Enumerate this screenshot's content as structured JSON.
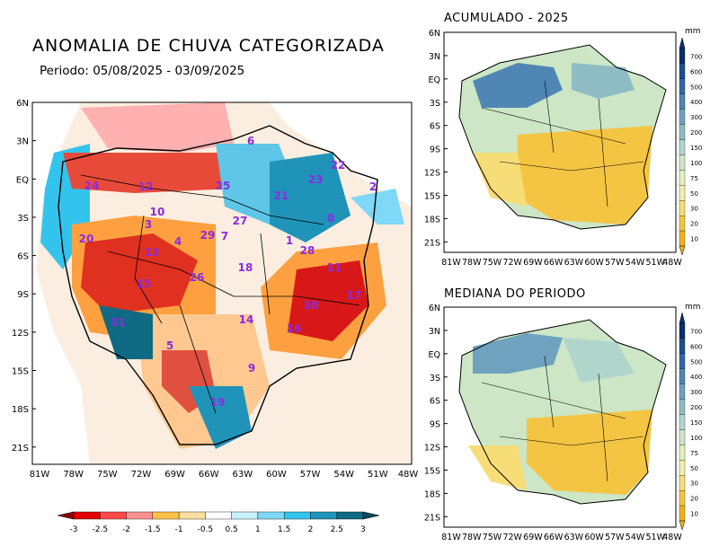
{
  "main_map": {
    "title": "ANOMALIA DE CHUVA CATEGORIZADA",
    "subtitle": "Periodo: 05/08/2025 - 03/09/2025",
    "lat_labels": [
      "6N",
      "3N",
      "EQ",
      "3S",
      "6S",
      "9S",
      "12S",
      "15S",
      "18S",
      "21S"
    ],
    "lon_labels": [
      "81W",
      "78W",
      "75W",
      "72W",
      "69W",
      "66W",
      "63W",
      "60W",
      "57W",
      "54W",
      "51W",
      "48W"
    ],
    "basin_numbers": [
      {
        "label": "1"
      },
      {
        "label": "2"
      },
      {
        "label": "3"
      },
      {
        "label": "4"
      },
      {
        "label": "5"
      },
      {
        "label": "6"
      },
      {
        "label": "7"
      },
      {
        "label": "8"
      },
      {
        "label": "9"
      },
      {
        "label": "10"
      },
      {
        "label": "11"
      },
      {
        "label": "12"
      },
      {
        "label": "13"
      },
      {
        "label": "14"
      },
      {
        "label": "15"
      },
      {
        "label": "16"
      },
      {
        "label": "17"
      },
      {
        "label": "18"
      },
      {
        "label": "19"
      },
      {
        "label": "20"
      },
      {
        "label": "21"
      },
      {
        "label": "22"
      },
      {
        "label": "23"
      },
      {
        "label": "24"
      },
      {
        "label": "25"
      },
      {
        "label": "26"
      },
      {
        "label": "27"
      },
      {
        "label": "28"
      },
      {
        "label": "29"
      },
      {
        "label": "30"
      },
      {
        "label": "31"
      }
    ]
  },
  "anomaly_colorbar": {
    "labels": [
      "-3",
      "-2.5",
      "-2",
      "-1.5",
      "-1",
      "-0.5",
      "0.5",
      "1",
      "1.5",
      "2",
      "2.5",
      "3"
    ],
    "colors": [
      "#8b0000",
      "#e00000",
      "#ff4a4a",
      "#ff9090",
      "#ffc04a",
      "#ffe0a0",
      "#ffffff",
      "#c8f0ff",
      "#7fd8f8",
      "#33c4ee",
      "#1f94b8",
      "#0f6a84",
      "#064a5a"
    ]
  },
  "acumulado_map": {
    "title": "ACUMULADO - 2025",
    "lat_labels": [
      "6N",
      "3N",
      "EQ",
      "3S",
      "6S",
      "9S",
      "12S",
      "15S",
      "18S",
      "21S"
    ],
    "lon_labels": [
      "81W",
      "78W",
      "75W",
      "72W",
      "69W",
      "66W",
      "63W",
      "60W",
      "57W",
      "54W",
      "51W",
      "48W"
    ]
  },
  "mediana_map": {
    "title": "MEDIANA DO PERIODO",
    "lat_labels": [
      "6N",
      "3N",
      "EQ",
      "3S",
      "6S",
      "9S",
      "12S",
      "15S",
      "18S",
      "21S"
    ],
    "lon_labels": [
      "81W",
      "78W",
      "75W",
      "72W",
      "69W",
      "66W",
      "63W",
      "60W",
      "57W",
      "54W",
      "51W",
      "48W"
    ]
  },
  "mm_colorbar": {
    "unit": "mm",
    "labels": [
      "700",
      "600",
      "500",
      "400",
      "300",
      "200",
      "150",
      "100",
      "75",
      "50",
      "30",
      "20",
      "10"
    ],
    "colors": [
      "#0b2e6e",
      "#1d4f8e",
      "#3468a6",
      "#4f86b4",
      "#6ea2bf",
      "#8fbcc4",
      "#b0d6cc",
      "#cce6c6",
      "#e2f0c0",
      "#f3efa8",
      "#f7dd78",
      "#f4c542",
      "#efb21c"
    ]
  }
}
